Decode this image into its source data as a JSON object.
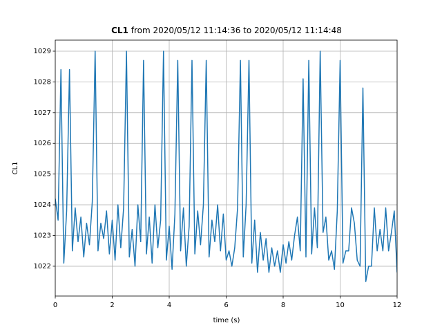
{
  "chart_data": {
    "type": "line",
    "title_bold": "CL1",
    "title": "from 2020/05/12 11:14:36 to 2020/05/12 11:14:48",
    "xlabel": "time (s)",
    "ylabel": "CL1",
    "xlim": [
      0,
      12
    ],
    "xticks": [
      0,
      2,
      4,
      6,
      8,
      10,
      12
    ],
    "ylim": [
      1021.03,
      1029.36
    ],
    "yticks": [
      1022,
      1023,
      1024,
      1025,
      1026,
      1027,
      1028,
      1029
    ],
    "grid": true,
    "x": [
      0.0,
      0.1,
      0.2,
      0.3,
      0.4,
      0.5,
      0.6,
      0.7,
      0.8,
      0.9,
      1.0,
      1.1,
      1.2,
      1.3,
      1.4,
      1.5,
      1.6,
      1.7,
      1.8,
      1.9,
      2.0,
      2.1,
      2.2,
      2.3,
      2.4,
      2.5,
      2.6,
      2.7,
      2.8,
      2.9,
      3.0,
      3.1,
      3.2,
      3.3,
      3.4,
      3.5,
      3.6,
      3.7,
      3.8,
      3.9,
      4.0,
      4.1,
      4.2,
      4.3,
      4.4,
      4.5,
      4.6,
      4.7,
      4.8,
      4.9,
      5.0,
      5.1,
      5.2,
      5.3,
      5.4,
      5.5,
      5.6,
      5.7,
      5.8,
      5.9,
      6.0,
      6.1,
      6.2,
      6.3,
      6.4,
      6.5,
      6.6,
      6.7,
      6.8,
      6.9,
      7.0,
      7.1,
      7.2,
      7.3,
      7.4,
      7.5,
      7.6,
      7.7,
      7.8,
      7.9,
      8.0,
      8.1,
      8.2,
      8.3,
      8.4,
      8.5,
      8.6,
      8.7,
      8.8,
      8.9,
      9.0,
      9.1,
      9.2,
      9.3,
      9.4,
      9.5,
      9.6,
      9.7,
      9.8,
      9.9,
      10.0,
      10.1,
      10.2,
      10.3,
      10.4,
      10.5,
      10.6,
      10.7,
      10.8,
      10.9,
      11.0,
      11.1,
      11.2,
      11.3,
      11.4,
      11.5,
      11.6,
      11.7,
      11.8,
      11.9,
      12.0
    ],
    "series": [
      {
        "name": "CL1",
        "color": "#1f77b4",
        "values": [
          1024.2,
          1023.5,
          1028.4,
          1022.1,
          1023.8,
          1028.4,
          1022.5,
          1023.9,
          1022.8,
          1023.6,
          1022.3,
          1023.4,
          1022.7,
          1024.1,
          1029.0,
          1022.5,
          1023.4,
          1022.9,
          1023.8,
          1022.4,
          1023.5,
          1022.2,
          1024.0,
          1022.6,
          1023.9,
          1029.0,
          1022.3,
          1023.2,
          1022.0,
          1024.0,
          1022.8,
          1028.7,
          1022.4,
          1023.6,
          1022.1,
          1024.0,
          1022.6,
          1023.5,
          1029.0,
          1022.2,
          1023.3,
          1021.9,
          1023.7,
          1028.7,
          1022.5,
          1023.9,
          1022.0,
          1023.3,
          1028.7,
          1022.4,
          1023.8,
          1022.7,
          1024.0,
          1028.7,
          1022.3,
          1023.5,
          1022.8,
          1024.0,
          1022.5,
          1023.7,
          1022.2,
          1022.5,
          1022.0,
          1022.6,
          1023.9,
          1028.7,
          1022.3,
          1024.0,
          1028.7,
          1022.1,
          1023.5,
          1021.8,
          1023.1,
          1022.2,
          1022.9,
          1021.8,
          1022.6,
          1022.0,
          1022.5,
          1021.8,
          1022.7,
          1022.1,
          1022.8,
          1022.2,
          1023.0,
          1023.6,
          1022.5,
          1028.1,
          1022.3,
          1028.7,
          1022.4,
          1023.9,
          1022.6,
          1029.0,
          1023.1,
          1023.6,
          1022.2,
          1022.5,
          1021.9,
          1023.8,
          1028.7,
          1022.1,
          1022.5,
          1022.5,
          1023.9,
          1023.4,
          1022.2,
          1022.0,
          1027.8,
          1021.5,
          1022.0,
          1022.0,
          1023.9,
          1022.5,
          1023.2,
          1022.5,
          1023.9,
          1022.5,
          1023.1,
          1023.8,
          1021.8
        ]
      }
    ]
  }
}
